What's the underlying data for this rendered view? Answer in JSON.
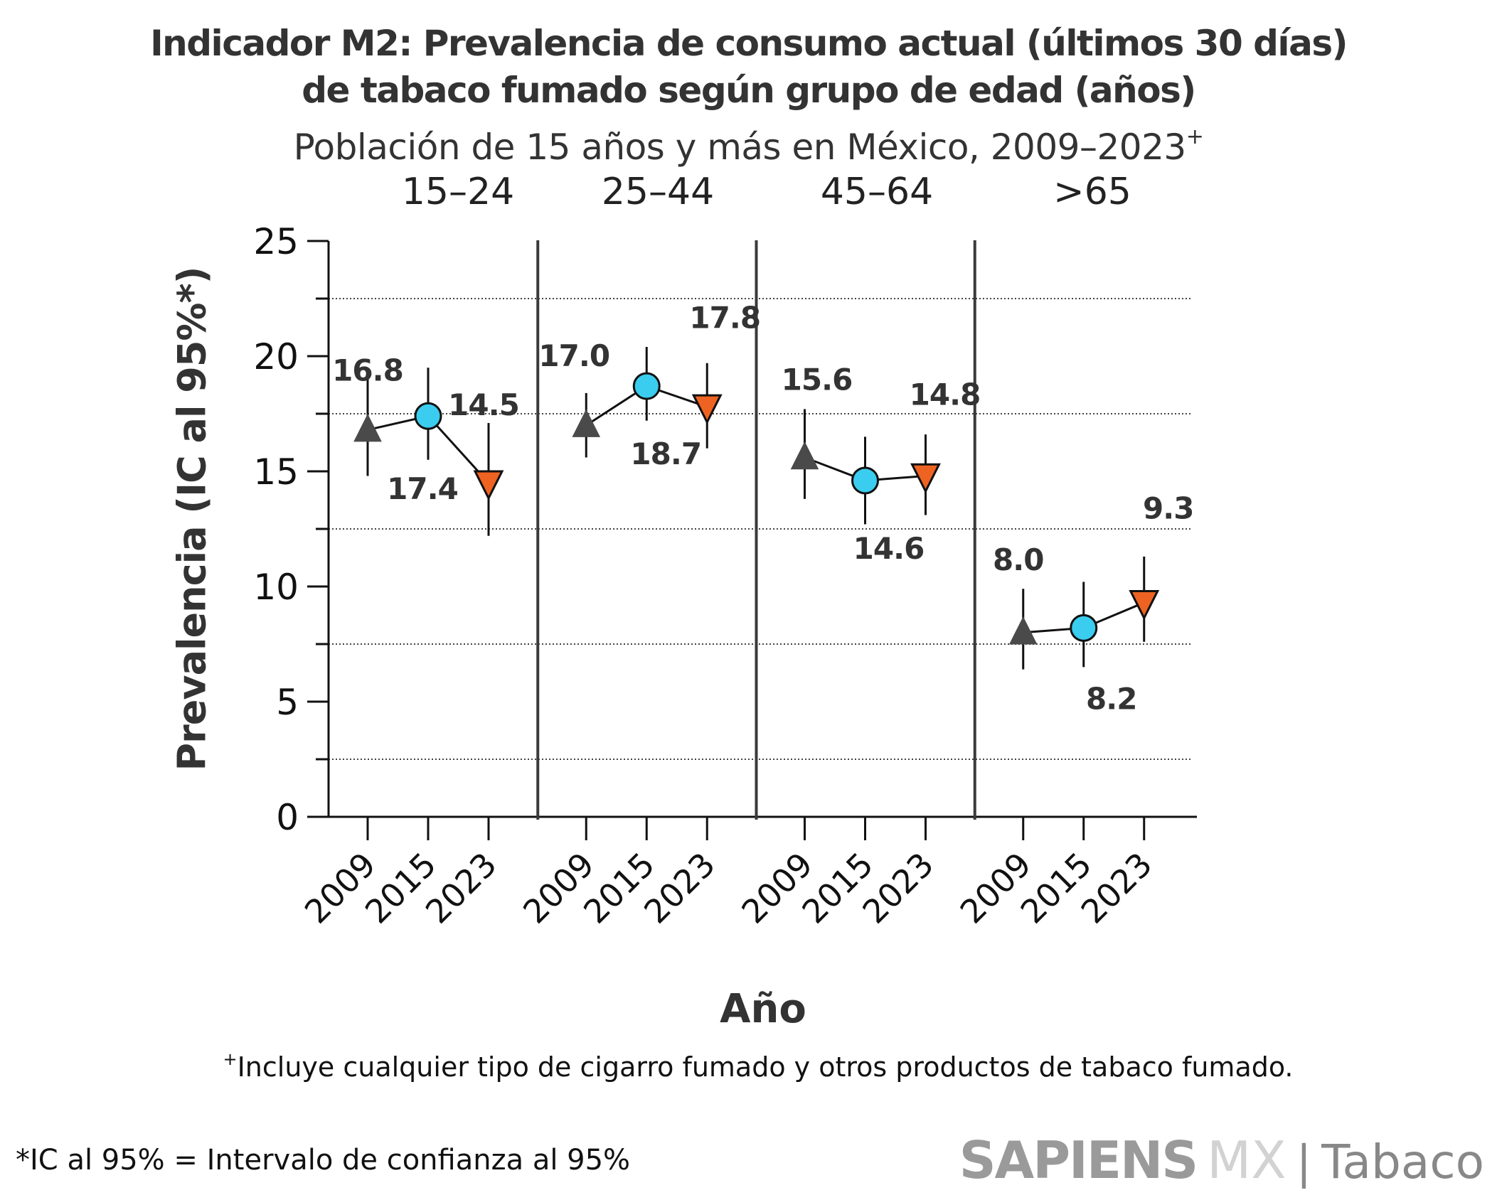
{
  "header": {
    "title_line1": "Indicador M2: Prevalencia de consumo actual (últimos 30 días)",
    "title_line2": "de tabaco fumado según grupo de edad (años)",
    "subtitle": "Población de 15 años y más en México, 2009–2023",
    "subtitle_mark": "+"
  },
  "footer": {
    "footnote1_mark": "+",
    "footnote1": "Incluye cualquier tipo de cigarro fumado y otros productos de tabaco fumado.",
    "footnote2": "*IC al 95% = Intervalo de confianza al 95%",
    "logo_brand": "SAPIENS",
    "logo_mx": "MX",
    "logo_sep": "|",
    "logo_section": "Tabaco"
  },
  "chart_data": {
    "type": "scatter",
    "title": "Indicador M2: Prevalencia de consumo actual (últimos 30 días) de tabaco fumado según grupo de edad (años)",
    "subtitle": "Población de 15 años y más en México, 2009–2023+",
    "xlabel": "Año",
    "ylabel": "Prevalencia (IC al 95%*)",
    "ylim": [
      0,
      25
    ],
    "yticks": [
      "0",
      "5",
      "10",
      "15",
      "20",
      "25"
    ],
    "minor_gridlines": [
      2.5,
      7.5,
      12.5,
      17.5,
      22.5
    ],
    "grid": "dotted horizontal at minor ticks",
    "groups": [
      "15–24",
      "25–44",
      "45–64",
      ">65"
    ],
    "years": [
      "2009",
      "2015",
      "2023"
    ],
    "series": [
      {
        "name": "2009",
        "marker": "triangle-up",
        "color": "#4a4a4a",
        "values": [
          16.8,
          17.0,
          15.6,
          8.0
        ],
        "ci_low": [
          14.8,
          15.6,
          13.8,
          6.4
        ],
        "ci_high": [
          19.0,
          18.4,
          17.7,
          9.9
        ]
      },
      {
        "name": "2015",
        "marker": "circle",
        "color": "#3acdef",
        "values": [
          17.4,
          18.7,
          14.6,
          8.2
        ],
        "ci_low": [
          15.5,
          17.2,
          12.7,
          6.5
        ],
        "ci_high": [
          19.5,
          20.4,
          16.5,
          10.2
        ]
      },
      {
        "name": "2023",
        "marker": "triangle-down",
        "color": "#ef6322",
        "values": [
          14.5,
          17.8,
          14.8,
          9.3
        ],
        "ci_low": [
          12.2,
          16.0,
          13.1,
          7.6
        ],
        "ci_high": [
          17.1,
          19.7,
          16.6,
          11.3
        ]
      }
    ],
    "data_labels": [
      [
        "16.8",
        "17.4",
        "14.5"
      ],
      [
        "17.0",
        "18.7",
        "17.8"
      ],
      [
        "15.6",
        "14.6",
        "14.8"
      ],
      [
        "8.0",
        "8.2",
        "9.3"
      ]
    ],
    "footnotes": [
      "+Incluye cualquier tipo de cigarro fumado y otros productos de tabaco fumado.",
      "*IC al 95% = Intervalo de confianza al 95%"
    ]
  }
}
